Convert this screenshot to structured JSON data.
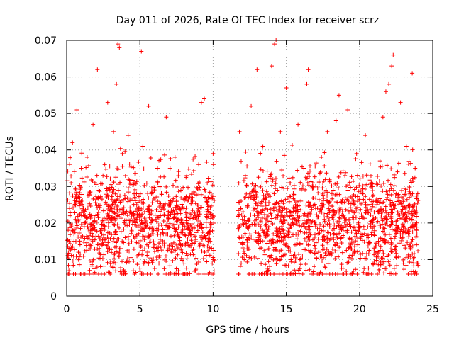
{
  "chart_data": {
    "type": "scatter",
    "title": "Day 011 of 2026, Rate Of TEC Index for receiver scrz",
    "xlabel": "GPS time / hours",
    "ylabel": "ROTI / TECUs",
    "xlim": [
      0,
      25
    ],
    "ylim": [
      0,
      0.07
    ],
    "xticks": [
      0,
      5,
      10,
      15,
      20,
      25
    ],
    "xtick_labels": [
      "0",
      "5",
      "10",
      "15",
      "20",
      "25"
    ],
    "yticks": [
      0,
      0.01,
      0.02,
      0.03,
      0.04,
      0.05,
      0.06,
      0.07
    ],
    "ytick_labels": [
      "0",
      "0.01",
      "0.02",
      "0.03",
      "0.04",
      "0.05",
      "0.06",
      "0.07"
    ],
    "grid": true,
    "marker": "plus",
    "series_color": "#ff0000",
    "data_gap_hours": [
      10.1,
      11.7
    ],
    "series": [
      {
        "name": "ROTI",
        "points": [
          [
            0.1,
            0.018
          ],
          [
            0.2,
            0.024
          ],
          [
            0.3,
            0.031
          ],
          [
            0.4,
            0.042
          ],
          [
            0.5,
            0.015
          ],
          [
            0.6,
            0.021
          ],
          [
            0.7,
            0.051
          ],
          [
            0.8,
            0.012
          ],
          [
            0.9,
            0.027
          ],
          [
            1.0,
            0.035
          ],
          [
            1.2,
            0.019
          ],
          [
            1.4,
            0.038
          ],
          [
            1.6,
            0.013
          ],
          [
            1.8,
            0.047
          ],
          [
            2.0,
            0.022
          ],
          [
            2.1,
            0.062
          ],
          [
            2.2,
            0.029
          ],
          [
            2.4,
            0.017
          ],
          [
            2.6,
            0.036
          ],
          [
            2.8,
            0.053
          ],
          [
            3.0,
            0.021
          ],
          [
            3.2,
            0.045
          ],
          [
            3.4,
            0.058
          ],
          [
            3.5,
            0.069
          ],
          [
            3.6,
            0.068
          ],
          [
            3.7,
            0.026
          ],
          [
            3.8,
            0.039
          ],
          [
            4.0,
            0.016
          ],
          [
            4.2,
            0.044
          ],
          [
            4.4,
            0.023
          ],
          [
            4.6,
            0.031
          ],
          [
            4.8,
            0.011
          ],
          [
            5.0,
            0.026
          ],
          [
            5.1,
            0.067
          ],
          [
            5.2,
            0.041
          ],
          [
            5.4,
            0.019
          ],
          [
            5.6,
            0.052
          ],
          [
            5.8,
            0.028
          ],
          [
            6.0,
            0.014
          ],
          [
            6.2,
            0.035
          ],
          [
            6.4,
            0.022
          ],
          [
            6.6,
            0.017
          ],
          [
            6.8,
            0.049
          ],
          [
            7.0,
            0.025
          ],
          [
            7.2,
            0.012
          ],
          [
            7.4,
            0.038
          ],
          [
            7.6,
            0.021
          ],
          [
            7.8,
            0.029
          ],
          [
            8.0,
            0.009
          ],
          [
            8.2,
            0.033
          ],
          [
            8.4,
            0.018
          ],
          [
            8.6,
            0.027
          ],
          [
            8.8,
            0.007
          ],
          [
            9.0,
            0.024
          ],
          [
            9.2,
            0.053
          ],
          [
            9.4,
            0.054
          ],
          [
            9.6,
            0.031
          ],
          [
            9.8,
            0.015
          ],
          [
            10.0,
            0.039
          ],
          [
            11.8,
            0.045
          ],
          [
            12.0,
            0.021
          ],
          [
            12.2,
            0.033
          ],
          [
            12.4,
            0.016
          ],
          [
            12.6,
            0.052
          ],
          [
            12.8,
            0.027
          ],
          [
            13.0,
            0.062
          ],
          [
            13.2,
            0.019
          ],
          [
            13.4,
            0.041
          ],
          [
            13.6,
            0.024
          ],
          [
            13.8,
            0.013
          ],
          [
            14.0,
            0.063
          ],
          [
            14.2,
            0.069
          ],
          [
            14.3,
            0.07
          ],
          [
            14.4,
            0.029
          ],
          [
            14.6,
            0.045
          ],
          [
            14.8,
            0.018
          ],
          [
            15.0,
            0.057
          ],
          [
            15.2,
            0.031
          ],
          [
            15.4,
            0.022
          ],
          [
            15.6,
            0.014
          ],
          [
            15.8,
            0.047
          ],
          [
            16.0,
            0.026
          ],
          [
            16.2,
            0.035
          ],
          [
            16.4,
            0.058
          ],
          [
            16.5,
            0.062
          ],
          [
            16.6,
            0.019
          ],
          [
            16.8,
            0.031
          ],
          [
            17.0,
            0.024
          ],
          [
            17.2,
            0.012
          ],
          [
            17.4,
            0.038
          ],
          [
            17.6,
            0.021
          ],
          [
            17.8,
            0.045
          ],
          [
            18.0,
            0.017
          ],
          [
            18.2,
            0.029
          ],
          [
            18.4,
            0.048
          ],
          [
            18.6,
            0.055
          ],
          [
            18.8,
            0.022
          ],
          [
            19.0,
            0.033
          ],
          [
            19.2,
            0.051
          ],
          [
            19.4,
            0.014
          ],
          [
            19.6,
            0.026
          ],
          [
            19.8,
            0.039
          ],
          [
            20.0,
            0.019
          ],
          [
            20.2,
            0.028
          ],
          [
            20.4,
            0.044
          ],
          [
            20.6,
            0.016
          ],
          [
            20.8,
            0.031
          ],
          [
            21.0,
            0.023
          ],
          [
            21.2,
            0.012
          ],
          [
            21.4,
            0.037
          ],
          [
            21.6,
            0.049
          ],
          [
            21.8,
            0.056
          ],
          [
            22.0,
            0.058
          ],
          [
            22.2,
            0.063
          ],
          [
            22.3,
            0.066
          ],
          [
            22.4,
            0.024
          ],
          [
            22.6,
            0.034
          ],
          [
            22.8,
            0.053
          ],
          [
            23.0,
            0.019
          ],
          [
            23.2,
            0.041
          ],
          [
            23.4,
            0.027
          ],
          [
            23.6,
            0.061
          ],
          [
            23.7,
            0.009
          ],
          [
            23.8,
            0.035
          ],
          [
            23.9,
            0.018
          ]
        ]
      }
    ]
  }
}
